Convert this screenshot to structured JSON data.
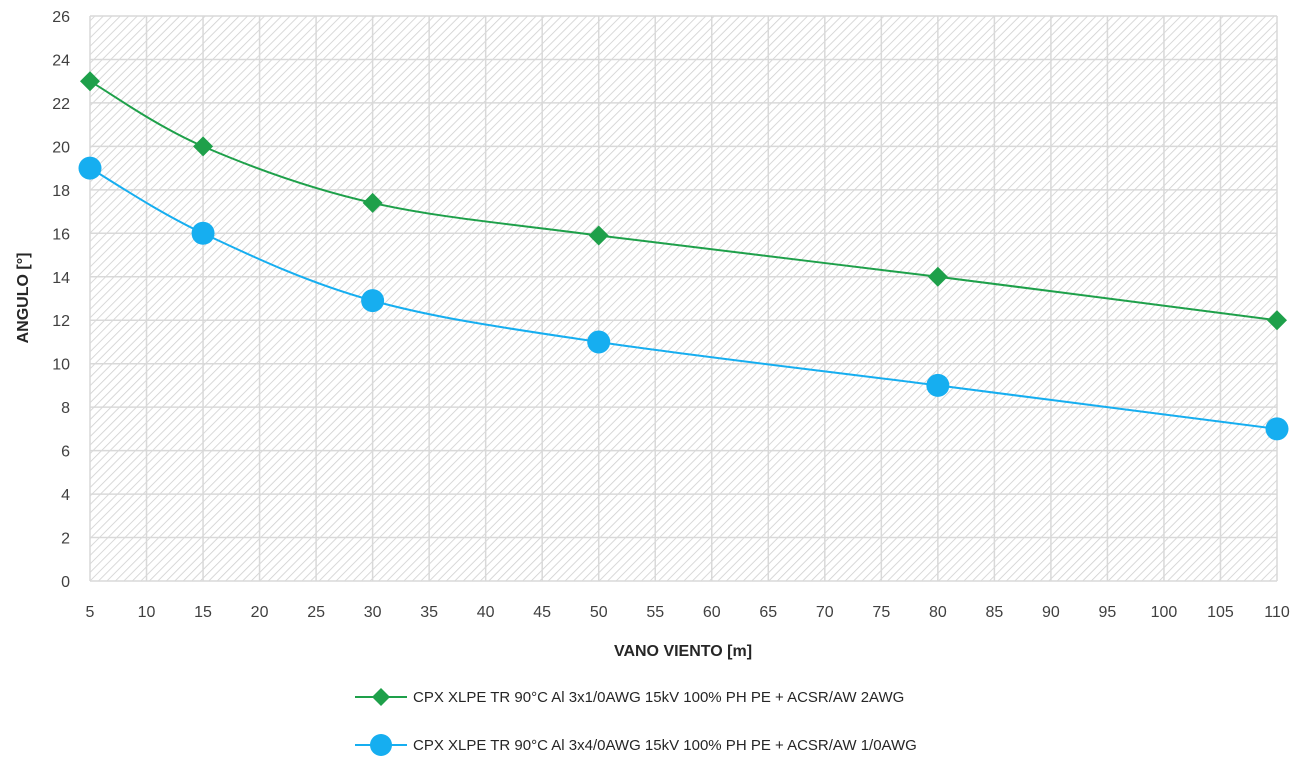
{
  "chart_data": {
    "type": "line",
    "title": "",
    "xlabel": "VANO VIENTO [m]",
    "ylabel": "ANGULO [°]",
    "xlim": [
      5,
      110
    ],
    "ylim": [
      0,
      26
    ],
    "x_ticks": [
      "5",
      "10",
      "15",
      "20",
      "25",
      "30",
      "35",
      "40",
      "45",
      "50",
      "55",
      "60",
      "65",
      "70",
      "75",
      "80",
      "85",
      "90",
      "95",
      "100",
      "105",
      "110"
    ],
    "y_ticks": [
      "0",
      "2",
      "4",
      "6",
      "8",
      "10",
      "12",
      "14",
      "16",
      "18",
      "20",
      "22",
      "24",
      "26"
    ],
    "grid": true,
    "legend_position": "bottom",
    "series": [
      {
        "name": "CPX XLPE TR 90°C Al 3x1/0AWG 15kV 100% PH PE + ACSR/AW 2AWG",
        "color": "#1ea04a",
        "marker": "diamond",
        "x": [
          5,
          15,
          30,
          50,
          80,
          110
        ],
        "y": [
          23,
          20,
          17.4,
          15.9,
          14,
          12
        ]
      },
      {
        "name": "CPX XLPE TR 90°C Al 3x4/0AWG 15kV 100% PH PE + ACSR/AW 1/0AWG",
        "color": "#16aef0",
        "marker": "circle",
        "x": [
          5,
          15,
          30,
          50,
          80,
          110
        ],
        "y": [
          19,
          16,
          12.9,
          11,
          9,
          7
        ]
      }
    ]
  }
}
